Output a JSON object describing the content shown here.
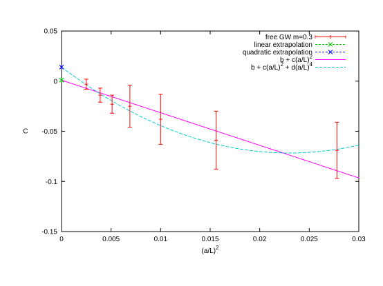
{
  "chart_data": {
    "type": "scatter",
    "xlabel": "(a/L)",
    "xlabel_sup": "2",
    "ylabel": "C",
    "xlim": [
      0,
      0.03
    ],
    "ylim": [
      -0.15,
      0.05
    ],
    "xticks": [
      0,
      0.005,
      0.01,
      0.015,
      0.02,
      0.025,
      0.03
    ],
    "xtick_labels": [
      "0",
      "0.005",
      "0.01",
      "0.015",
      "0.02",
      "0.025",
      "0.03"
    ],
    "yticks": [
      0.05,
      0,
      -0.05,
      -0.1,
      -0.15
    ],
    "ytick_labels": [
      "0.05",
      "0",
      "-0.05",
      "-0.1",
      "-0.15"
    ],
    "grid": false,
    "legend_position": "top-right",
    "series": [
      {
        "name": "free GW m=0.3",
        "kind": "errorbars",
        "color": "#ff0000",
        "points": [
          {
            "x": 0.0025,
            "y": -0.003,
            "err": 0.005
          },
          {
            "x": 0.0039,
            "y": -0.014,
            "err": 0.007
          },
          {
            "x": 0.0051,
            "y": -0.023,
            "err": 0.009
          },
          {
            "x": 0.0069,
            "y": -0.025,
            "err": 0.021
          },
          {
            "x": 0.01,
            "y": -0.038,
            "err": 0.025
          },
          {
            "x": 0.0156,
            "y": -0.059,
            "err": 0.029
          },
          {
            "x": 0.0278,
            "y": -0.069,
            "err": 0.028
          }
        ]
      },
      {
        "name": "linear extrapolation",
        "kind": "point",
        "color": "#00cc00",
        "points": [
          {
            "x": 0,
            "y": 0.001,
            "err": 0.002
          }
        ]
      },
      {
        "name": "quadratic extrapolation",
        "kind": "point",
        "color": "#0000ff",
        "points": [
          {
            "x": 0,
            "y": 0.014,
            "err": 0.002
          }
        ]
      },
      {
        "name": "b + c(a/L)",
        "name_sup": "2",
        "kind": "line",
        "color": "#ff00ff",
        "b": 0.001,
        "c": -3.25
      },
      {
        "name": "b + c(a/L)",
        "name_sup": "2",
        "name_tail": " + d(a/L)",
        "name_tail_sup": "4",
        "kind": "line",
        "color": "#00cccc",
        "b": 0.014,
        "c": -7.45,
        "d": 162
      }
    ]
  }
}
